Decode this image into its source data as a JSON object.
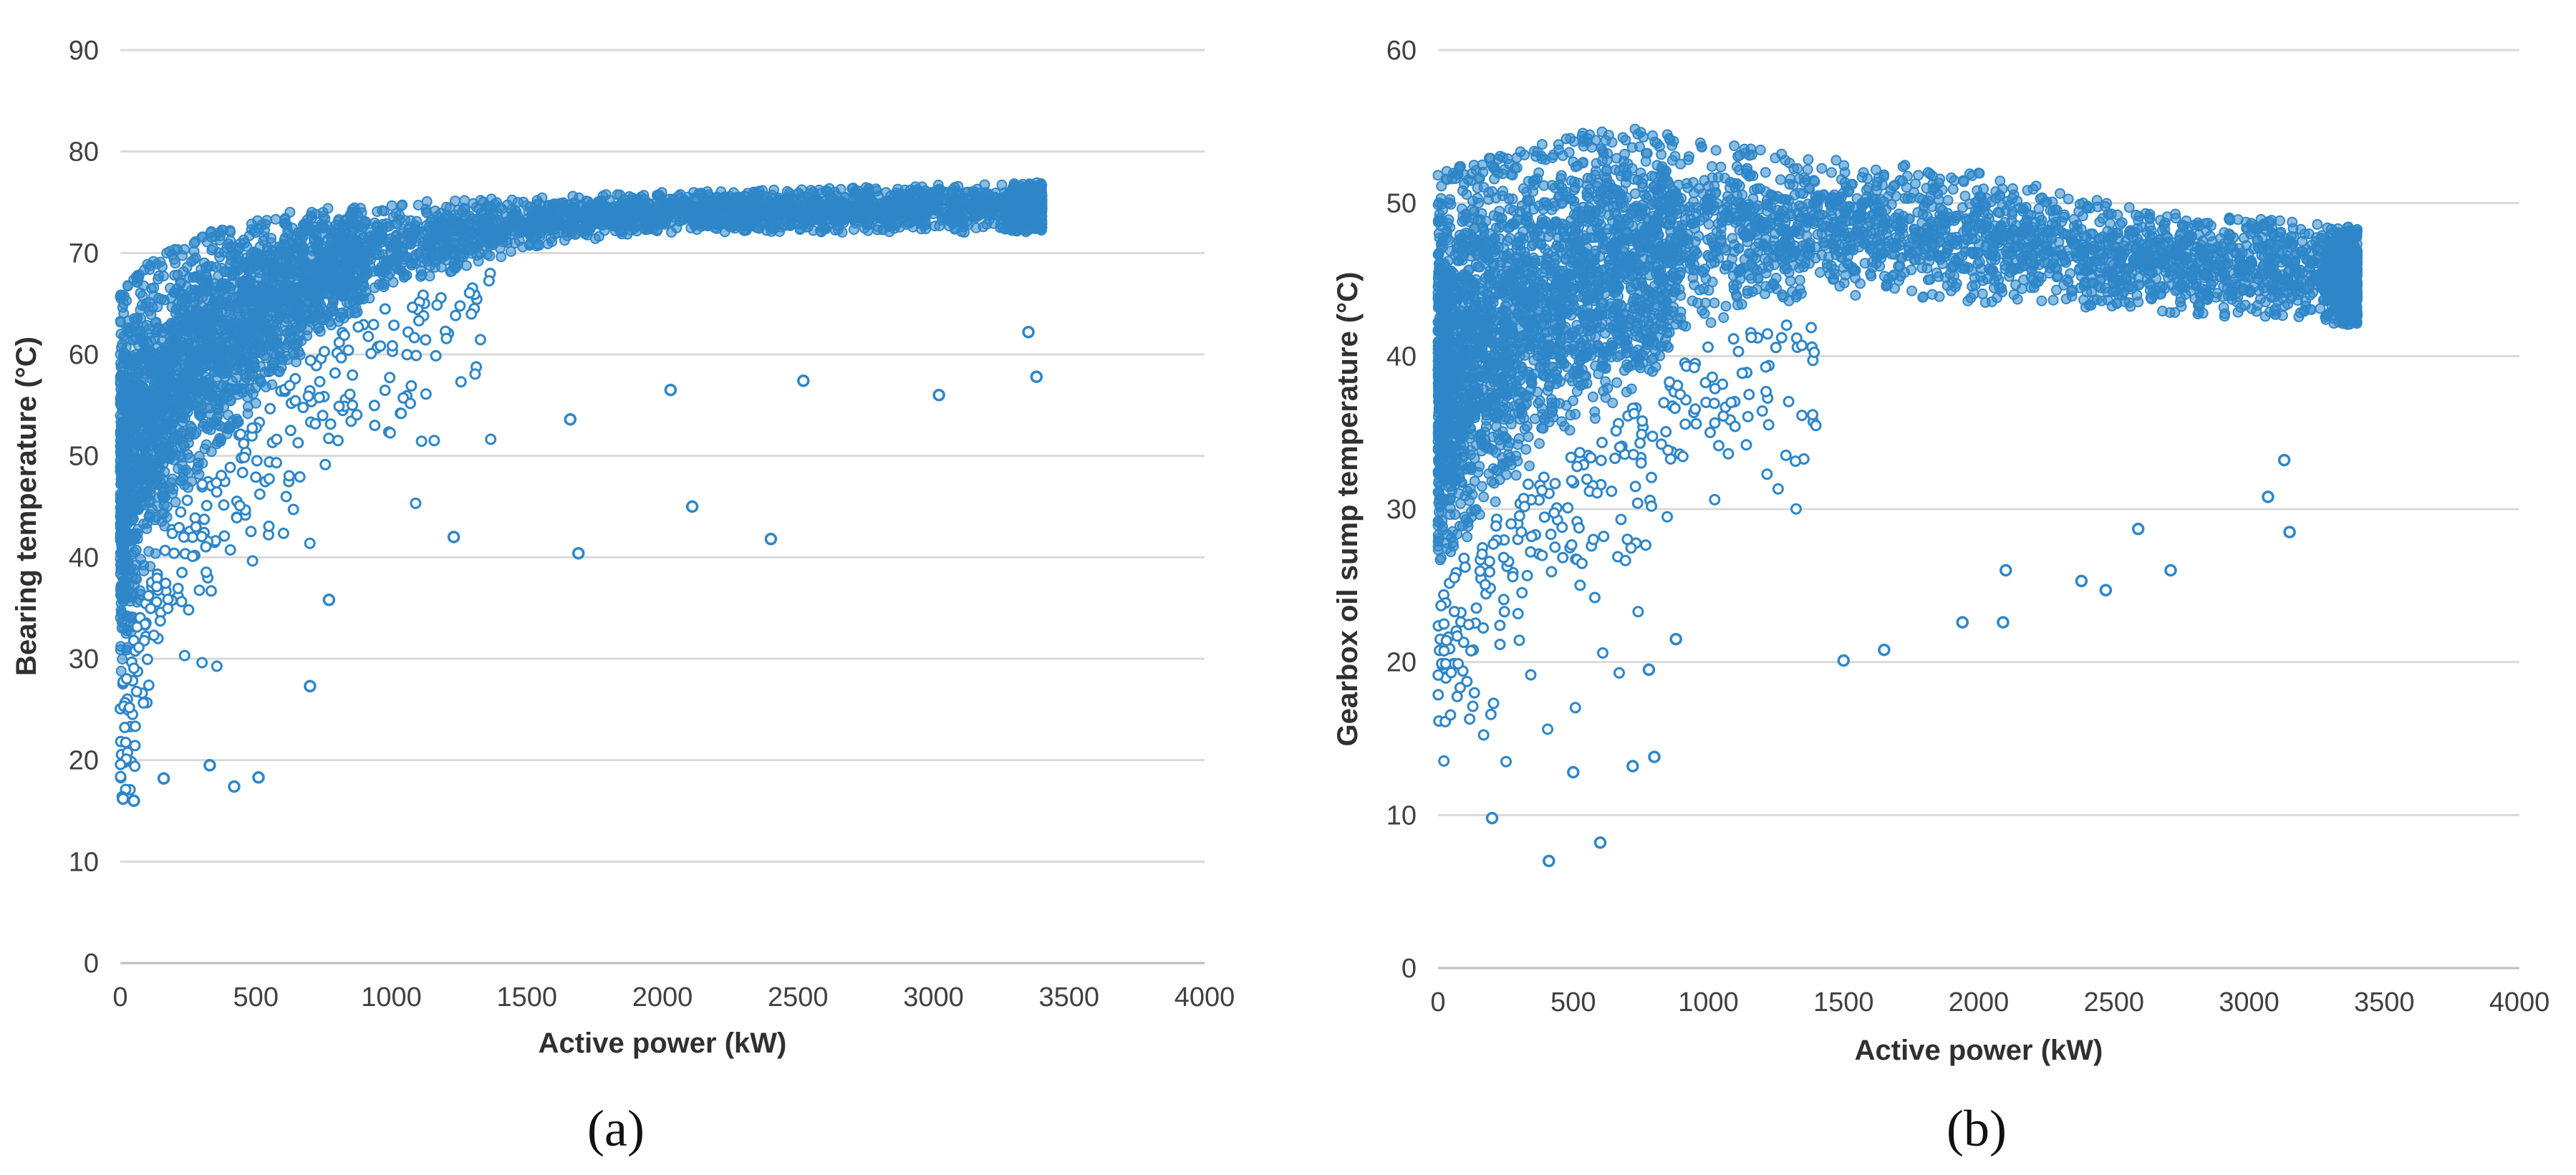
{
  "chart_data": [
    {
      "type": "scatter",
      "panel": "(a)",
      "xlabel": "Active power (kW)",
      "ylabel": "Bearing temperature (°C)",
      "xlim": [
        0,
        4000
      ],
      "ylim": [
        0,
        90
      ],
      "xticks": [
        0,
        500,
        1000,
        1500,
        2000,
        2500,
        3000,
        3500,
        4000
      ],
      "yticks": [
        0,
        10,
        20,
        30,
        40,
        50,
        60,
        70,
        80,
        90
      ],
      "grid": "horizontal",
      "marker_color": "#2E86C8",
      "trend": {
        "description": "Temperature rises steeply from ~30–60 °C near 0 kW and saturates around 73–75 °C above ~1200 kW; dense cloud ends at ~3400 kW.",
        "upper_envelope": [
          [
            0,
            66
          ],
          [
            100,
            69
          ],
          [
            300,
            72
          ],
          [
            600,
            74
          ],
          [
            1000,
            75
          ],
          [
            2000,
            76
          ],
          [
            3400,
            77
          ]
        ],
        "lower_envelope": [
          [
            0,
            28
          ],
          [
            100,
            38
          ],
          [
            200,
            45
          ],
          [
            400,
            52
          ],
          [
            600,
            58
          ],
          [
            800,
            63
          ],
          [
            1000,
            66
          ],
          [
            1200,
            68
          ],
          [
            1600,
            71
          ],
          [
            2000,
            72
          ],
          [
            3400,
            72
          ]
        ]
      },
      "outliers": [
        [
          10,
          16.2
        ],
        [
          50,
          16.0
        ],
        [
          160,
          18.2
        ],
        [
          330,
          19.5
        ],
        [
          420,
          17.4
        ],
        [
          510,
          18.3
        ],
        [
          700,
          27.3
        ],
        [
          770,
          35.8
        ],
        [
          1230,
          42.0
        ],
        [
          1690,
          40.4
        ],
        [
          2110,
          45.0
        ],
        [
          2400,
          41.8
        ],
        [
          2520,
          57.4
        ],
        [
          3020,
          56.0
        ],
        [
          2030,
          56.5
        ],
        [
          1660,
          53.6
        ],
        [
          3380,
          57.8
        ],
        [
          3350,
          62.2
        ]
      ]
    },
    {
      "type": "scatter",
      "panel": "(b)",
      "xlabel": "Active power (kW)",
      "ylabel": "Gearbox oil sump temperature (°C)",
      "xlim": [
        0,
        4000
      ],
      "ylim": [
        0,
        60
      ],
      "xticks": [
        0,
        500,
        1000,
        1500,
        2000,
        2500,
        3000,
        3500,
        4000
      ],
      "yticks": [
        0,
        10,
        20,
        30,
        40,
        50,
        60
      ],
      "grid": "horizontal",
      "marker_color": "#2E86C8",
      "trend": {
        "description": "Wide spread 14–52 °C at low power, peaks ~54 °C near 600–700 kW, then a narrowing band settling around 42–48 °C up to ~3400 kW.",
        "upper_envelope": [
          [
            0,
            52
          ],
          [
            200,
            53
          ],
          [
            500,
            54.5
          ],
          [
            700,
            55
          ],
          [
            1000,
            54
          ],
          [
            1500,
            53
          ],
          [
            2000,
            52
          ],
          [
            2500,
            50
          ],
          [
            3000,
            49
          ],
          [
            3400,
            48.5
          ]
        ],
        "lower_envelope": [
          [
            0,
            26
          ],
          [
            200,
            30
          ],
          [
            400,
            34
          ],
          [
            600,
            36
          ],
          [
            800,
            39
          ],
          [
            1000,
            42
          ],
          [
            1500,
            44
          ],
          [
            2000,
            43.5
          ],
          [
            2500,
            43
          ],
          [
            3000,
            42.5
          ],
          [
            3400,
            42
          ]
        ]
      },
      "outliers": [
        [
          200,
          9.8
        ],
        [
          410,
          7.0
        ],
        [
          600,
          8.2
        ],
        [
          500,
          12.8
        ],
        [
          720,
          13.2
        ],
        [
          800,
          13.8
        ],
        [
          780,
          19.5
        ],
        [
          880,
          21.5
        ],
        [
          1500,
          20.1
        ],
        [
          1650,
          20.8
        ],
        [
          1940,
          22.6
        ],
        [
          2090,
          22.6
        ],
        [
          2100,
          26.0
        ],
        [
          2380,
          25.3
        ],
        [
          2470,
          24.7
        ],
        [
          2710,
          26.0
        ],
        [
          2590,
          28.7
        ],
        [
          3150,
          28.5
        ],
        [
          3070,
          30.8
        ],
        [
          3130,
          33.2
        ]
      ]
    }
  ],
  "panel_labels": [
    "(a)",
    "(b)"
  ]
}
